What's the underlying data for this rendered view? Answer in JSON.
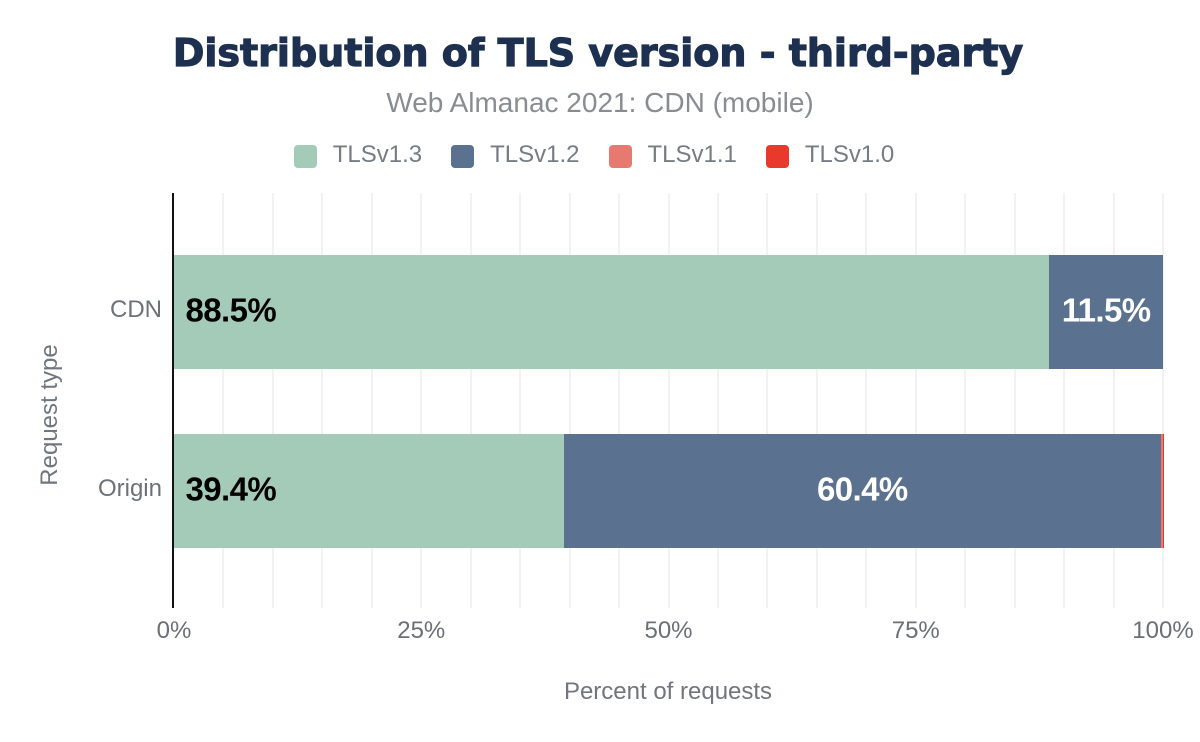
{
  "chart_data": {
    "type": "bar",
    "orientation": "horizontal",
    "stacked": true,
    "title": "Distribution of TLS version - third-party",
    "subtitle": "Web Almanac 2021: CDN (mobile)",
    "xlabel": "Percent of requests",
    "ylabel": "Request type",
    "categories": [
      "CDN",
      "Origin"
    ],
    "series": [
      {
        "name": "TLSv1.3",
        "color": "#a3cbb8",
        "values": [
          88.5,
          39.4
        ]
      },
      {
        "name": "TLSv1.2",
        "color": "#5b7190",
        "values": [
          11.5,
          60.4
        ]
      },
      {
        "name": "TLSv1.1",
        "color": "#e77a70",
        "values": [
          0,
          0.18
        ]
      },
      {
        "name": "TLSv1.0",
        "color": "#e8392c",
        "values": [
          0,
          0.02
        ]
      }
    ],
    "value_labels": [
      [
        {
          "text": "88.5%",
          "series": 0,
          "placement": "start",
          "color": "#000000"
        },
        {
          "text": "11.5%",
          "series": 1,
          "placement": "center",
          "color": "#ffffff"
        }
      ],
      [
        {
          "text": "39.4%",
          "series": 0,
          "placement": "start",
          "color": "#000000"
        },
        {
          "text": "60.4%",
          "series": 1,
          "placement": "center",
          "color": "#ffffff"
        }
      ]
    ],
    "xlim": [
      0,
      100
    ],
    "xticks": [
      {
        "value": 0,
        "label": "0%"
      },
      {
        "value": 25,
        "label": "25%"
      },
      {
        "value": 50,
        "label": "50%"
      },
      {
        "value": 75,
        "label": "75%"
      },
      {
        "value": 100,
        "label": "100%"
      }
    ],
    "grid": {
      "show": true,
      "axis": "x",
      "step_percent": 5,
      "color": "#f2f2f2"
    },
    "legend_position": "top",
    "colors": {
      "title": "#1e3050",
      "subtitle": "#878d93",
      "legend_label": "#757c83",
      "category_label": "#6c7278",
      "tick_label": "#6a7076",
      "axis_title": "#6f767d",
      "axis_line": "#111111",
      "background": "#ffffff"
    }
  }
}
